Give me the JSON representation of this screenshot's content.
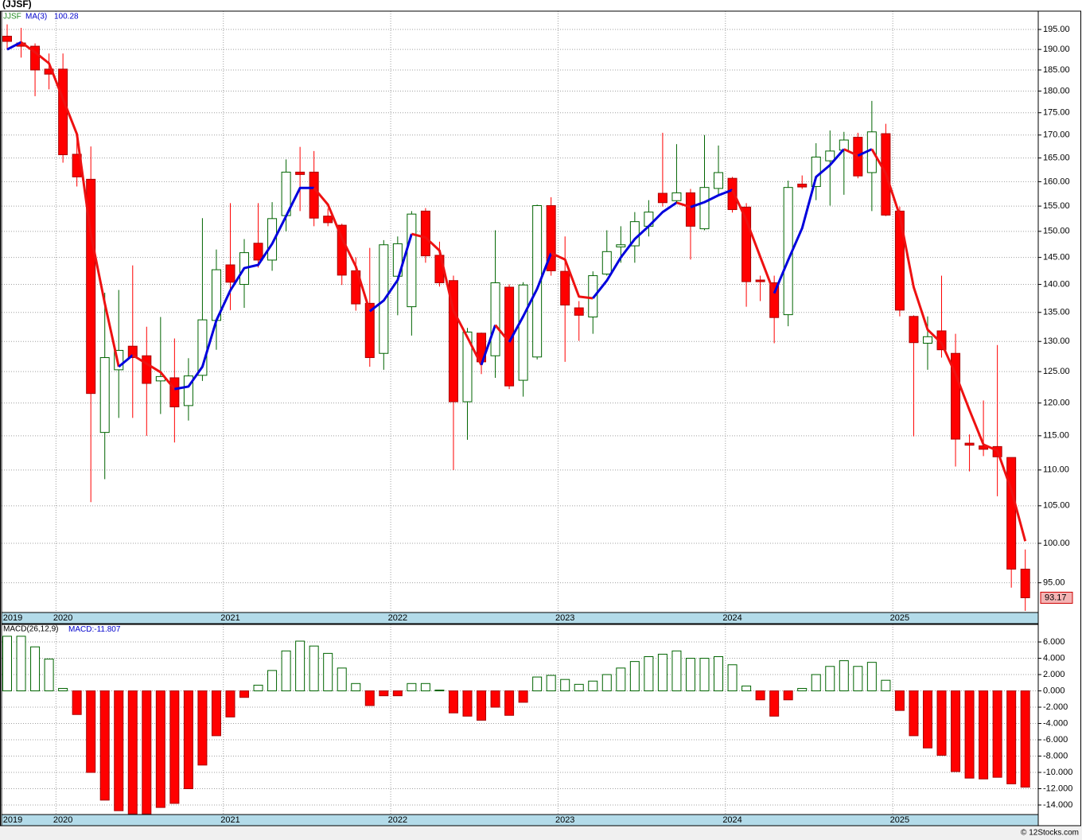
{
  "header": {
    "title": "(JJSF)",
    "footer": "© 12Stocks.com"
  },
  "chart_data": [
    {
      "type": "candlestick",
      "symbol": "JJSF",
      "categories": [
        "2019",
        null,
        null,
        null,
        "2020",
        null,
        null,
        null,
        null,
        null,
        null,
        null,
        null,
        null,
        null,
        null,
        "2021",
        null,
        null,
        null,
        null,
        null,
        null,
        null,
        null,
        null,
        null,
        null,
        "2022",
        null,
        null,
        null,
        null,
        null,
        null,
        null,
        null,
        null,
        null,
        null,
        "2023",
        null,
        null,
        null,
        null,
        null,
        null,
        null,
        null,
        null,
        null,
        null,
        "2024",
        null,
        null,
        null,
        null,
        null,
        null,
        null,
        null,
        null,
        null,
        null,
        "2025",
        null,
        null,
        null,
        null,
        null,
        null,
        null,
        null,
        null
      ],
      "open": [
        193.3,
        191.6,
        190.8,
        185.2,
        185.2,
        165.8,
        160.5,
        115.5,
        125.3,
        129.2,
        127.6,
        123.5,
        124,
        119.6,
        124.4,
        133.6,
        143.6,
        140,
        147.7,
        144.5,
        153.1,
        162,
        162,
        153,
        151.2,
        142.5,
        136.6,
        128,
        141.5,
        136,
        154,
        145.4,
        140.7,
        120.2,
        131.4,
        127.6,
        139.5,
        123.6,
        127.4,
        155.1,
        142.4,
        135.8,
        134.2,
        141.9,
        147,
        147.2,
        151,
        157.6,
        156.1,
        157.7,
        150.5,
        158.6,
        160.7,
        154.8,
        140.8,
        140.3,
        134.6,
        159.5,
        159,
        164.4,
        166.7,
        169.5,
        161.9,
        170.3,
        154,
        134.3,
        129.7,
        131.8,
        128,
        113.9,
        113.5,
        113.4,
        111.8,
        96.7
      ],
      "high": [
        196.3,
        195.4,
        191.5,
        189,
        189,
        170.5,
        167.5,
        138.5,
        139,
        143.5,
        132.5,
        134.2,
        130.5,
        127.2,
        152.6,
        146.5,
        155.6,
        148.5,
        155.6,
        155.8,
        164.7,
        167.4,
        166.5,
        154.5,
        151.5,
        145,
        146.8,
        148.3,
        149,
        154,
        154.6,
        148,
        141.6,
        132.3,
        131.5,
        150.2,
        140,
        140.4,
        155.3,
        156.8,
        149,
        137,
        142.4,
        150.2,
        151,
        153.8,
        156.2,
        170.5,
        168,
        158.5,
        170,
        167.7,
        161,
        155.6,
        141.6,
        141.6,
        160.2,
        161.3,
        168.2,
        171,
        170.7,
        170.5,
        177.7,
        172.5,
        154.9,
        134.5,
        134.3,
        141.6,
        131.3,
        115.2,
        120.4,
        129.4,
        111.8,
        99.2
      ],
      "low": [
        190,
        188,
        178.8,
        180.4,
        164,
        159,
        105.5,
        108.7,
        117.7,
        117.7,
        115,
        118.3,
        114,
        117.3,
        123.5,
        128.6,
        135.4,
        135.8,
        143.1,
        142.5,
        150,
        154,
        151,
        151,
        139.9,
        135.3,
        125.8,
        125.3,
        134.5,
        131,
        144,
        139.6,
        110,
        114.4,
        124.6,
        124,
        122.2,
        121,
        127,
        141.6,
        126.6,
        130.1,
        131.3,
        141.6,
        144,
        144,
        149,
        154.9,
        155.6,
        144.6,
        150.2,
        157.3,
        153.7,
        136,
        137,
        129.7,
        132.6,
        158.5,
        156.2,
        155.1,
        157.3,
        160.7,
        154,
        153,
        134.3,
        114.9,
        125.3,
        127.3,
        110.5,
        109.8,
        112,
        106.3,
        94.4,
        91.6
      ],
      "close": [
        192,
        190.8,
        185,
        184,
        165.7,
        161,
        121.5,
        127.3,
        128.5,
        127.3,
        123.1,
        124.2,
        119.4,
        124.3,
        133.7,
        142.7,
        140.4,
        145.9,
        144.5,
        152.5,
        162,
        161.5,
        152.6,
        151.7,
        141.7,
        136.5,
        127.3,
        147.4,
        147.6,
        153.4,
        145.3,
        140.3,
        120.2,
        131.6,
        126.6,
        140.3,
        122.7,
        139.9,
        155.1,
        142.5,
        136.3,
        134.5,
        141.6,
        146.1,
        147.4,
        151.9,
        153.8,
        155.7,
        157.7,
        151,
        158.8,
        161.9,
        154.3,
        140.5,
        140.5,
        134.1,
        158.8,
        158.9,
        165.2,
        166.5,
        168.9,
        161.2,
        170.7,
        153.2,
        135.4,
        129.8,
        130.8,
        128.6,
        114.5,
        113.6,
        113,
        111.9,
        96.7,
        93.17
      ],
      "up_color": "#006400",
      "down_color": "#ff0000",
      "series": [
        {
          "name": "MA(3)",
          "rising_color": "#0000dd",
          "falling_color": "#ee1111",
          "values": [
            190,
            191.8,
            189.3,
            186.6,
            178.2,
            170.2,
            149.4,
            136.6,
            125.8,
            127.7,
            126.3,
            124.9,
            122.2,
            122.6,
            125.8,
            133.6,
            138.9,
            143,
            143.6,
            147.6,
            153,
            158.7,
            158.7,
            155.3,
            148.7,
            143.3,
            135.2,
            137.1,
            140.8,
            149.5,
            148.8,
            146.3,
            135.3,
            130.7,
            126.1,
            132.8,
            129.9,
            134.3,
            139.2,
            145.8,
            144.6,
            137.8,
            137.5,
            140.7,
            145,
            148.5,
            151,
            153.8,
            155.7,
            154.8,
            155.8,
            157.2,
            158.3,
            152.2,
            145.1,
            138.4,
            144.5,
            150.6,
            161,
            163.5,
            166.9,
            165.5,
            166.9,
            161.7,
            153.1,
            139.5,
            132,
            129.7,
            124.6,
            118.9,
            113.7,
            112.8,
            107.2,
            100.28
          ]
        }
      ],
      "ylim": [
        91.4,
        199.7
      ],
      "log_scale": true,
      "grid": true,
      "yticks": [
        {
          "value": 95,
          "label": "95.00"
        },
        {
          "value": 100,
          "label": "100.00"
        },
        {
          "value": 105,
          "label": "105.00"
        },
        {
          "value": 110,
          "label": "110.00"
        },
        {
          "value": 115,
          "label": "115.00"
        },
        {
          "value": 120,
          "label": "120.00"
        },
        {
          "value": 125,
          "label": "125.00"
        },
        {
          "value": 130,
          "label": "130.00"
        },
        {
          "value": 135,
          "label": "135.00"
        },
        {
          "value": 140,
          "label": "140.00"
        },
        {
          "value": 145,
          "label": "145.00"
        },
        {
          "value": 150,
          "label": "150.00"
        },
        {
          "value": 155,
          "label": "155.00"
        },
        {
          "value": 160,
          "label": "160.00"
        },
        {
          "value": 165,
          "label": "165.00"
        },
        {
          "value": 170,
          "label": "170.00"
        },
        {
          "value": 175,
          "label": "175.00"
        },
        {
          "value": 180,
          "label": "180.00"
        },
        {
          "value": 185,
          "label": "185.00"
        },
        {
          "value": 190,
          "label": "190.00"
        },
        {
          "value": 195,
          "label": "195.00"
        }
      ]
    },
    {
      "type": "bar",
      "title": "MACD(26,12,9)",
      "value_prefix": "MACD:",
      "values": [
        6.7,
        6.7,
        5.4,
        3.9,
        0.3,
        -2.9,
        -10,
        -13.4,
        -14.7,
        -15.1,
        -15.1,
        -14.3,
        -13.8,
        -12,
        -9.1,
        -5.5,
        -3.2,
        -0.8,
        0.7,
        2.5,
        4.9,
        6.1,
        5.5,
        4.6,
        2.8,
        0.9,
        -1.8,
        -0.6,
        -0.6,
        0.9,
        0.9,
        0.1,
        -2.7,
        -3.1,
        -3.6,
        -2,
        -3,
        -1.4,
        1.7,
        1.9,
        1.4,
        0.8,
        1.2,
        2,
        2.8,
        3.6,
        4.2,
        4.5,
        4.9,
        4,
        4,
        4.2,
        3.2,
        0.6,
        -1.1,
        -3.1,
        -1.1,
        0.3,
        2,
        3,
        3.7,
        3,
        3.5,
        1.3,
        -2.4,
        -5.5,
        -7,
        -7.9,
        -9.9,
        -10.7,
        -10.8,
        -10.6,
        -11.4,
        -11.807
      ],
      "positive_color": "#006400",
      "negative_color": "#ff0000",
      "ylim": [
        -15.17,
        8.15
      ],
      "grid": true,
      "yticks": [
        {
          "value": 6,
          "label": "6.000"
        },
        {
          "value": 4,
          "label": "4.000"
        },
        {
          "value": 2,
          "label": "2.000"
        },
        {
          "value": 0,
          "label": "0.000"
        },
        {
          "value": -2,
          "label": "-2.000"
        },
        {
          "value": -4,
          "label": "-4.000"
        },
        {
          "value": -6,
          "label": "-6.000"
        },
        {
          "value": -8,
          "label": "-8.000"
        },
        {
          "value": -10,
          "label": "-10.000"
        },
        {
          "value": -12,
          "label": "-12.000"
        },
        {
          "value": -14,
          "label": "-14.000"
        }
      ]
    }
  ]
}
